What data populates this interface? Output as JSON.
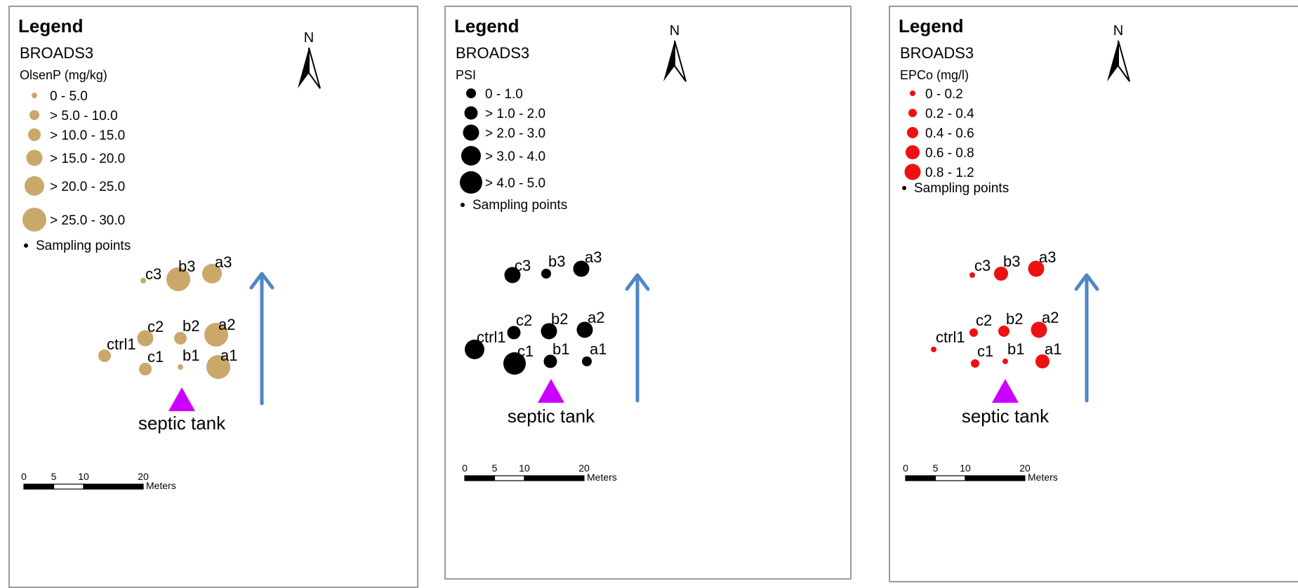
{
  "panels": [
    {
      "legend_title": "Legend",
      "layer_name": "BROADS3",
      "field_name": "OlsenP (mg/kg)",
      "symbol_color": "#c9a86a",
      "classes": [
        "0 - 5.0",
        "> 5.0 - 10.0",
        "> 10.0 - 15.0",
        "> 15.0 - 20.0",
        "> 20.0 - 25.0",
        "> 25.0 - 30.0"
      ],
      "sampling_points_label": "Sampling points",
      "points": [
        {
          "label": "c3",
          "cls": 0
        },
        {
          "label": "b3",
          "cls": 5
        },
        {
          "label": "a3",
          "cls": 4
        },
        {
          "label": "c2",
          "cls": 3
        },
        {
          "label": "b2",
          "cls": 2
        },
        {
          "label": "a2",
          "cls": 5
        },
        {
          "label": "ctrl1",
          "cls": 2
        },
        {
          "label": "c1",
          "cls": 2
        },
        {
          "label": "b1",
          "cls": 0
        },
        {
          "label": "a1",
          "cls": 5
        }
      ],
      "septic_tank_label": "septic tank",
      "north_label": "N",
      "scale_ticks": [
        "0",
        "5",
        "10",
        "20"
      ],
      "scale_units": "Meters"
    },
    {
      "legend_title": "Legend",
      "layer_name": "BROADS3",
      "field_name": "PSI",
      "symbol_color": "#000000",
      "classes": [
        "0 - 1.0",
        "> 1.0 - 2.0",
        "> 2.0 - 3.0",
        "> 3.0 - 4.0",
        "> 4.0 - 5.0"
      ],
      "sampling_points_label": "Sampling points",
      "points": [
        {
          "label": "c3",
          "cls": 2
        },
        {
          "label": "b3",
          "cls": 0
        },
        {
          "label": "a3",
          "cls": 2
        },
        {
          "label": "c2",
          "cls": 1
        },
        {
          "label": "b2",
          "cls": 2
        },
        {
          "label": "a2",
          "cls": 2
        },
        {
          "label": "ctrl1",
          "cls": 3
        },
        {
          "label": "c1",
          "cls": 4
        },
        {
          "label": "b1",
          "cls": 1
        },
        {
          "label": "a1",
          "cls": 0
        }
      ],
      "septic_tank_label": "septic tank",
      "north_label": "N",
      "scale_ticks": [
        "0",
        "5",
        "10",
        "20"
      ],
      "scale_units": "Meters"
    },
    {
      "legend_title": "Legend",
      "layer_name": "BROADS3",
      "field_name": "EPCo (mg/l)",
      "symbol_color": "#ee1111",
      "classes": [
        "0 - 0.2",
        "0.2 - 0.4",
        "0.4 - 0.6",
        "0.6 - 0.8",
        "0.8 - 1.2"
      ],
      "sampling_points_label": "Sampling points",
      "points": [
        {
          "label": "c3",
          "cls": 0
        },
        {
          "label": "b3",
          "cls": 3
        },
        {
          "label": "a3",
          "cls": 4
        },
        {
          "label": "c2",
          "cls": 1
        },
        {
          "label": "b2",
          "cls": 2
        },
        {
          "label": "a2",
          "cls": 4
        },
        {
          "label": "ctrl1",
          "cls": 0
        },
        {
          "label": "c1",
          "cls": 1
        },
        {
          "label": "b1",
          "cls": 0
        },
        {
          "label": "a1",
          "cls": 3
        }
      ],
      "septic_tank_label": "septic tank",
      "north_label": "N",
      "scale_ticks": [
        "0",
        "5",
        "10",
        "20"
      ],
      "scale_units": "Meters"
    }
  ]
}
